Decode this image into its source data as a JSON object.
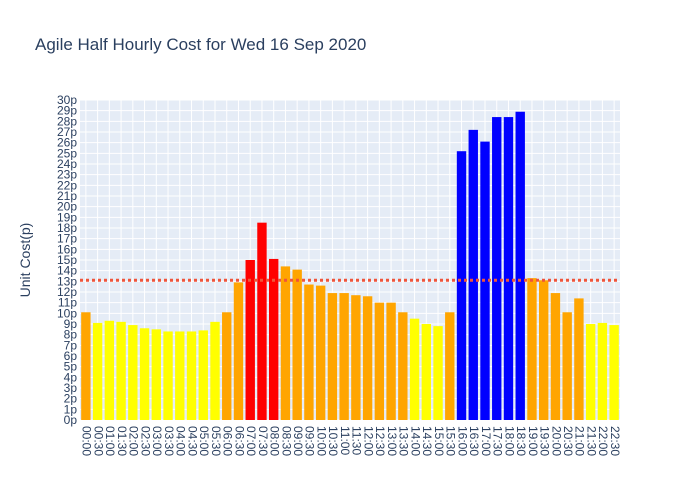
{
  "chart_data": {
    "type": "bar",
    "title": "Agile Half Hourly Cost for Wed 16 Sep 2020",
    "xlabel": "",
    "ylabel": "Unit Cost(p)",
    "y_tick_suffix": "p",
    "ylim": [
      0,
      30
    ],
    "ytick_step": 1,
    "grid": true,
    "plot_background": "#e5ecf6",
    "reference_line": {
      "y": 13.1,
      "color": "#ef553b",
      "style": "dotted"
    },
    "colors": {
      "yellow": "#ffff00",
      "orange": "#ffa500",
      "red": "#ff0000",
      "blue": "#0000ff"
    },
    "categories": [
      "00:00",
      "00:30",
      "01:00",
      "01:30",
      "02:00",
      "02:30",
      "03:00",
      "03:30",
      "04:00",
      "04:30",
      "05:00",
      "05:30",
      "06:00",
      "06:30",
      "07:00",
      "07:30",
      "08:00",
      "08:30",
      "09:00",
      "09:30",
      "10:00",
      "10:30",
      "11:00",
      "11:30",
      "12:00",
      "12:30",
      "13:00",
      "13:30",
      "14:00",
      "14:30",
      "15:00",
      "15:30",
      "16:00",
      "16:30",
      "17:00",
      "17:30",
      "18:00",
      "18:30",
      "19:00",
      "19:30",
      "20:00",
      "20:30",
      "21:00",
      "21:30",
      "22:00",
      "22:30"
    ],
    "values": [
      10.1,
      9.1,
      9.3,
      9.2,
      8.9,
      8.6,
      8.5,
      8.3,
      8.3,
      8.3,
      8.4,
      9.2,
      10.1,
      12.9,
      15.0,
      18.5,
      15.1,
      14.4,
      14.1,
      12.7,
      12.6,
      11.9,
      11.9,
      11.7,
      11.6,
      11.0,
      11.0,
      10.1,
      9.5,
      9.0,
      8.8,
      10.1,
      25.2,
      27.2,
      26.1,
      28.4,
      28.4,
      28.9,
      13.3,
      13.1,
      11.9,
      10.1,
      11.4,
      9.0,
      9.1,
      8.9
    ],
    "bar_colors": [
      "orange",
      "yellow",
      "yellow",
      "yellow",
      "yellow",
      "yellow",
      "yellow",
      "yellow",
      "yellow",
      "yellow",
      "yellow",
      "yellow",
      "orange",
      "orange",
      "red",
      "red",
      "red",
      "orange",
      "orange",
      "orange",
      "orange",
      "orange",
      "orange",
      "orange",
      "orange",
      "orange",
      "orange",
      "orange",
      "yellow",
      "yellow",
      "yellow",
      "orange",
      "blue",
      "blue",
      "blue",
      "blue",
      "blue",
      "blue",
      "orange",
      "orange",
      "orange",
      "orange",
      "orange",
      "yellow",
      "yellow",
      "yellow"
    ]
  }
}
